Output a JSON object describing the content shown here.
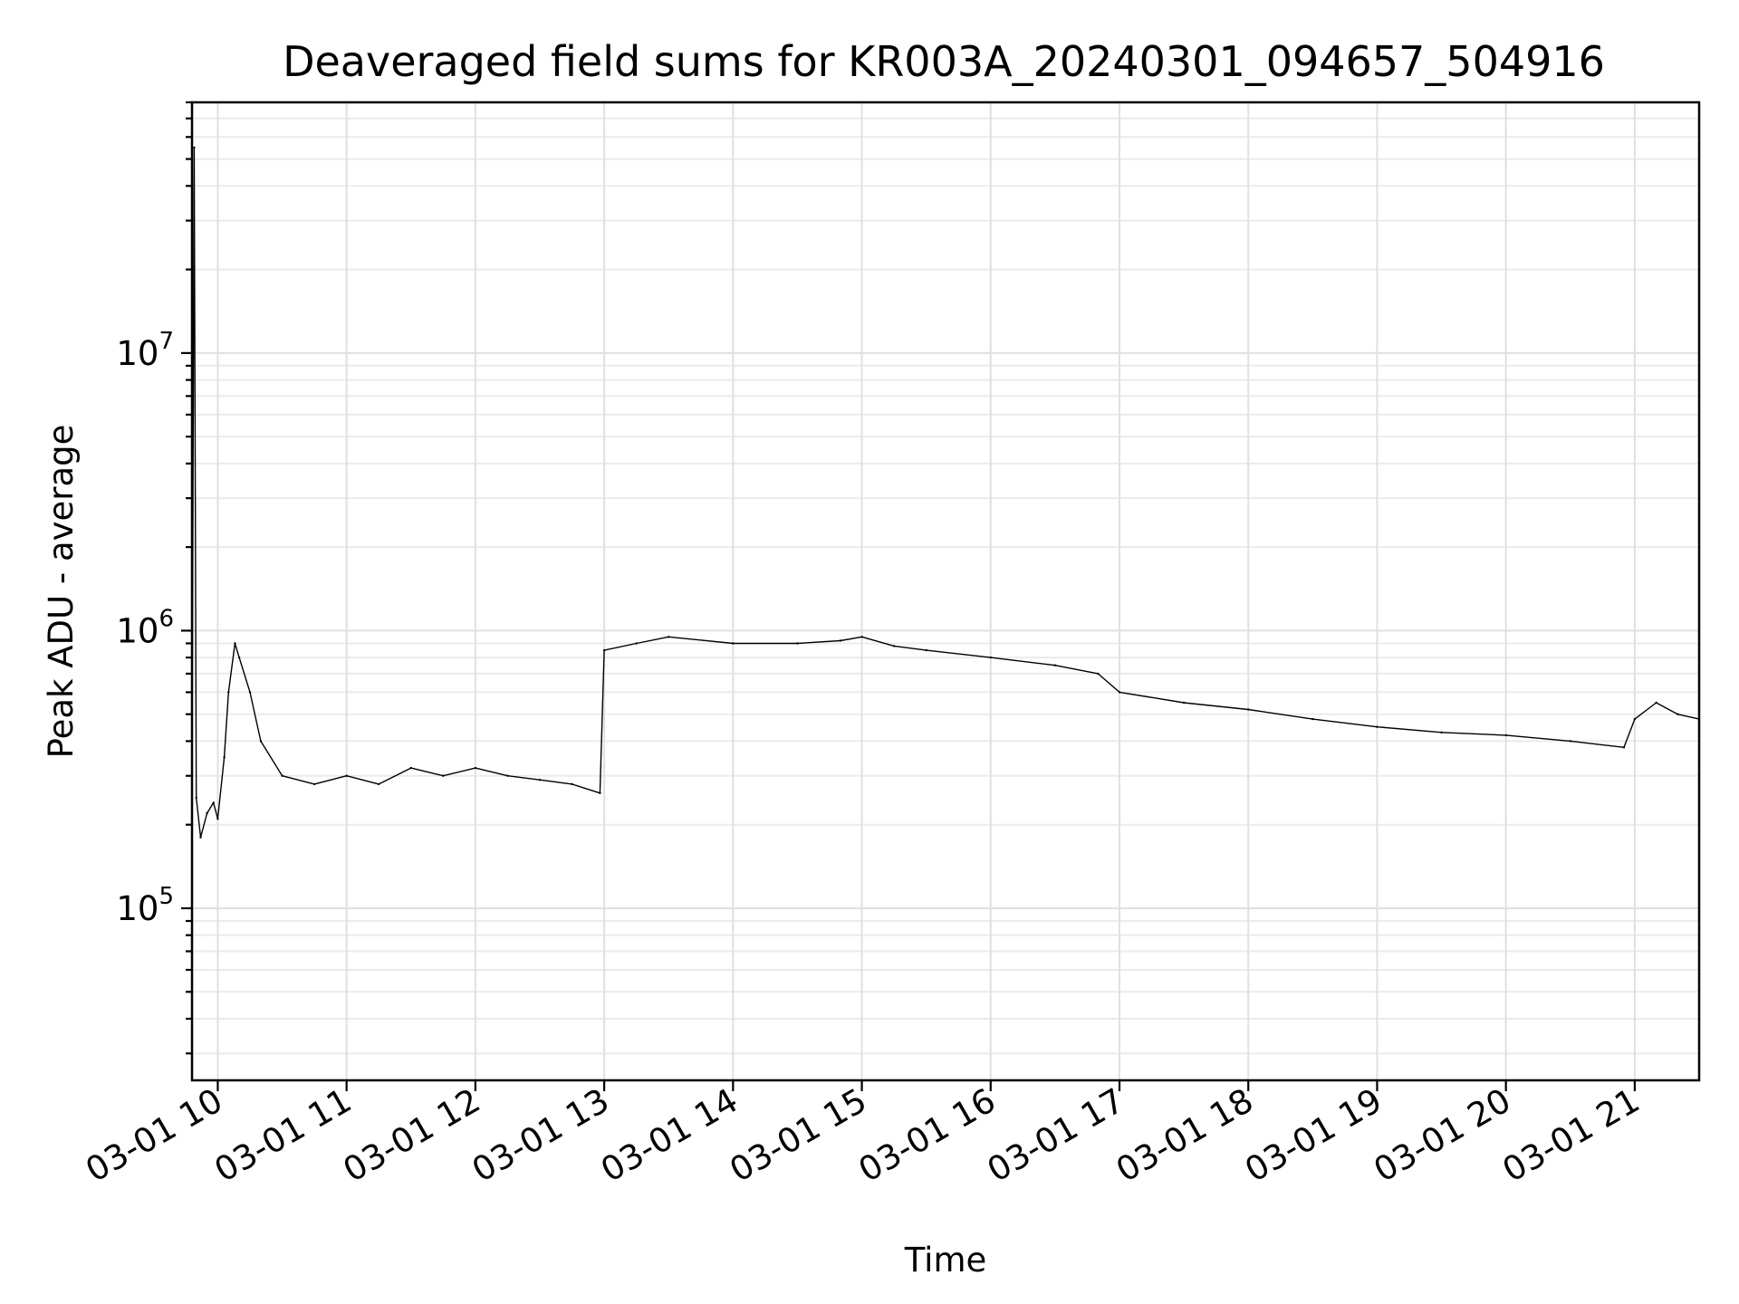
{
  "chart_data": {
    "type": "line",
    "title": "Deaveraged field sums for KR003A_20240301_094657_504916",
    "xlabel": "Time",
    "ylabel": "Peak ADU - average",
    "y_scale": "log",
    "ylim": [
      24000,
      80000000
    ],
    "xlim": [
      "2024-03-01T09:48",
      "2024-03-01T21:30"
    ],
    "grid": true,
    "grid_minor": true,
    "line_color": "#000000",
    "x_ticks": [
      {
        "time": "2024-03-01T10:00",
        "label": "03-01 10"
      },
      {
        "time": "2024-03-01T11:00",
        "label": "03-01 11"
      },
      {
        "time": "2024-03-01T12:00",
        "label": "03-01 12"
      },
      {
        "time": "2024-03-01T13:00",
        "label": "03-01 13"
      },
      {
        "time": "2024-03-01T14:00",
        "label": "03-01 14"
      },
      {
        "time": "2024-03-01T15:00",
        "label": "03-01 15"
      },
      {
        "time": "2024-03-01T16:00",
        "label": "03-01 16"
      },
      {
        "time": "2024-03-01T17:00",
        "label": "03-01 17"
      },
      {
        "time": "2024-03-01T18:00",
        "label": "03-01 18"
      },
      {
        "time": "2024-03-01T19:00",
        "label": "03-01 19"
      },
      {
        "time": "2024-03-01T20:00",
        "label": "03-01 20"
      },
      {
        "time": "2024-03-01T21:00",
        "label": "03-01 21"
      }
    ],
    "y_ticks": [
      {
        "value": 100000,
        "base": "10",
        "exp": "5"
      },
      {
        "value": 1000000,
        "base": "10",
        "exp": "6"
      },
      {
        "value": 10000000,
        "base": "10",
        "exp": "7"
      }
    ],
    "series": [
      {
        "x": [
          "2024-03-01T09:48",
          "2024-03-01T09:49",
          "2024-03-01T09:50",
          "2024-03-01T09:52",
          "2024-03-01T09:55",
          "2024-03-01T09:58",
          "2024-03-01T10:00",
          "2024-03-01T10:03",
          "2024-03-01T10:05",
          "2024-03-01T10:08",
          "2024-03-01T10:10",
          "2024-03-01T10:15",
          "2024-03-01T10:20",
          "2024-03-01T10:30",
          "2024-03-01T10:45",
          "2024-03-01T11:00",
          "2024-03-01T11:15",
          "2024-03-01T11:30",
          "2024-03-01T11:45",
          "2024-03-01T12:00",
          "2024-03-01T12:15",
          "2024-03-01T12:30",
          "2024-03-01T12:45",
          "2024-03-01T12:58",
          "2024-03-01T13:00",
          "2024-03-01T13:15",
          "2024-03-01T13:30",
          "2024-03-01T14:00",
          "2024-03-01T14:30",
          "2024-03-01T14:50",
          "2024-03-01T15:00",
          "2024-03-01T15:15",
          "2024-03-01T15:30",
          "2024-03-01T16:00",
          "2024-03-01T16:30",
          "2024-03-01T16:50",
          "2024-03-01T17:00",
          "2024-03-01T17:30",
          "2024-03-01T18:00",
          "2024-03-01T18:30",
          "2024-03-01T19:00",
          "2024-03-01T19:30",
          "2024-03-01T20:00",
          "2024-03-01T20:30",
          "2024-03-01T20:55",
          "2024-03-01T21:00",
          "2024-03-01T21:10",
          "2024-03-01T21:20",
          "2024-03-01T21:30"
        ],
        "y": [
          300000,
          55000000,
          250000,
          180000,
          220000,
          240000,
          210000,
          350000,
          600000,
          900000,
          800000,
          600000,
          400000,
          300000,
          280000,
          300000,
          280000,
          320000,
          300000,
          320000,
          300000,
          290000,
          280000,
          260000,
          850000,
          900000,
          950000,
          900000,
          900000,
          920000,
          950000,
          880000,
          850000,
          800000,
          750000,
          700000,
          600000,
          550000,
          520000,
          480000,
          450000,
          430000,
          420000,
          400000,
          380000,
          480000,
          550000,
          500000,
          480000
        ]
      }
    ]
  }
}
